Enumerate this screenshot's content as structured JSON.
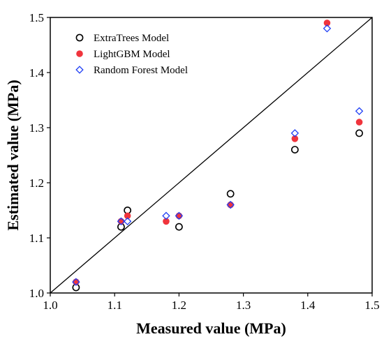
{
  "chart_data": {
    "type": "scatter",
    "xlabel": "Measured value (MPa)",
    "ylabel": "Estimated value (MPa)",
    "xlim": [
      1.0,
      1.5
    ],
    "ylim": [
      1.0,
      1.5
    ],
    "xticks": [
      "1.0",
      "1.1",
      "1.2",
      "1.3",
      "1.4",
      "1.5"
    ],
    "yticks": [
      "1.0",
      "1.1",
      "1.2",
      "1.3",
      "1.4",
      "1.5"
    ],
    "reference_line": {
      "x": [
        1.0,
        1.5
      ],
      "y": [
        1.0,
        1.5
      ]
    },
    "legend_position": "top-left",
    "grid": false,
    "series": [
      {
        "name": "ExtraTrees Model",
        "marker": "open-circle",
        "color": "#000000",
        "x": [
          1.04,
          1.11,
          1.12,
          1.2,
          1.28,
          1.38,
          1.48
        ],
        "y": [
          1.01,
          1.12,
          1.15,
          1.12,
          1.18,
          1.26,
          1.29
        ]
      },
      {
        "name": "LightGBM Model",
        "marker": "filled-circle",
        "color": "#f0343c",
        "x": [
          1.04,
          1.11,
          1.12,
          1.18,
          1.2,
          1.28,
          1.38,
          1.43,
          1.48
        ],
        "y": [
          1.02,
          1.13,
          1.14,
          1.13,
          1.14,
          1.16,
          1.28,
          1.49,
          1.31
        ]
      },
      {
        "name": "Random Forest Model",
        "marker": "open-diamond",
        "color": "#1f3ff5",
        "x": [
          1.04,
          1.11,
          1.12,
          1.18,
          1.2,
          1.28,
          1.38,
          1.43,
          1.48
        ],
        "y": [
          1.02,
          1.13,
          1.13,
          1.14,
          1.14,
          1.16,
          1.29,
          1.48,
          1.33
        ]
      }
    ]
  }
}
